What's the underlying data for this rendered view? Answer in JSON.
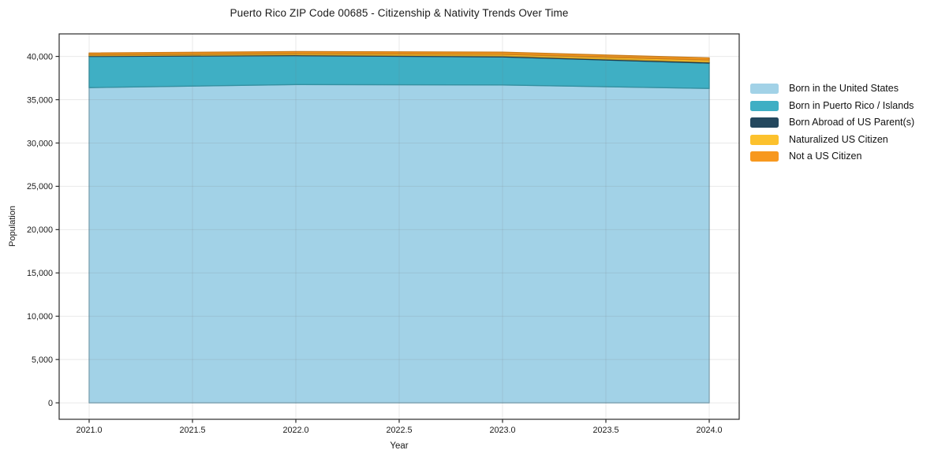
{
  "chart_data": {
    "type": "area",
    "stacked": true,
    "title": "Puerto Rico ZIP Code 00685 - Citizenship & Nativity Trends Over Time",
    "xlabel": "Year",
    "ylabel": "Population",
    "x": [
      2021,
      2022,
      2023,
      2024
    ],
    "series": [
      {
        "name": "Born in the United States",
        "color": "#a2d2e7",
        "values": [
          36400,
          36750,
          36700,
          36300
        ]
      },
      {
        "name": "Born in Puerto Rico / Islands",
        "color": "#3fafc4",
        "values": [
          3600,
          3340,
          3250,
          2930
        ]
      },
      {
        "name": "Born Abroad of US Parent(s)",
        "color": "#24485e",
        "values": [
          90,
          100,
          110,
          120
        ]
      },
      {
        "name": "Naturalized US Citizen",
        "color": "#fcc12d",
        "values": [
          100,
          150,
          190,
          230
        ]
      },
      {
        "name": "Not a US Citizen",
        "color": "#f7981f",
        "values": [
          200,
          220,
          240,
          250
        ]
      }
    ],
    "x_ticks": {
      "values": [
        2021.0,
        2021.5,
        2022.0,
        2022.5,
        2023.0,
        2023.5,
        2024.0
      ],
      "labels": [
        "2021.0",
        "2021.5",
        "2022.0",
        "2022.5",
        "2023.0",
        "2023.5",
        "2024.0"
      ]
    },
    "y_ticks": {
      "values": [
        0,
        5000,
        10000,
        15000,
        20000,
        25000,
        30000,
        35000,
        40000
      ],
      "labels": [
        "0",
        "5,000",
        "10,000",
        "15,000",
        "20,000",
        "25,000",
        "30,000",
        "35,000",
        "40,000"
      ]
    },
    "xlim": [
      2020.855,
      2024.145
    ],
    "ylim": [
      -1900,
      42600
    ],
    "grid": true,
    "legend_position": "right",
    "grid_color": "#e7e7e7",
    "spine_color": "#2b2b2b",
    "tick_label_color": "#1a1a1a"
  }
}
